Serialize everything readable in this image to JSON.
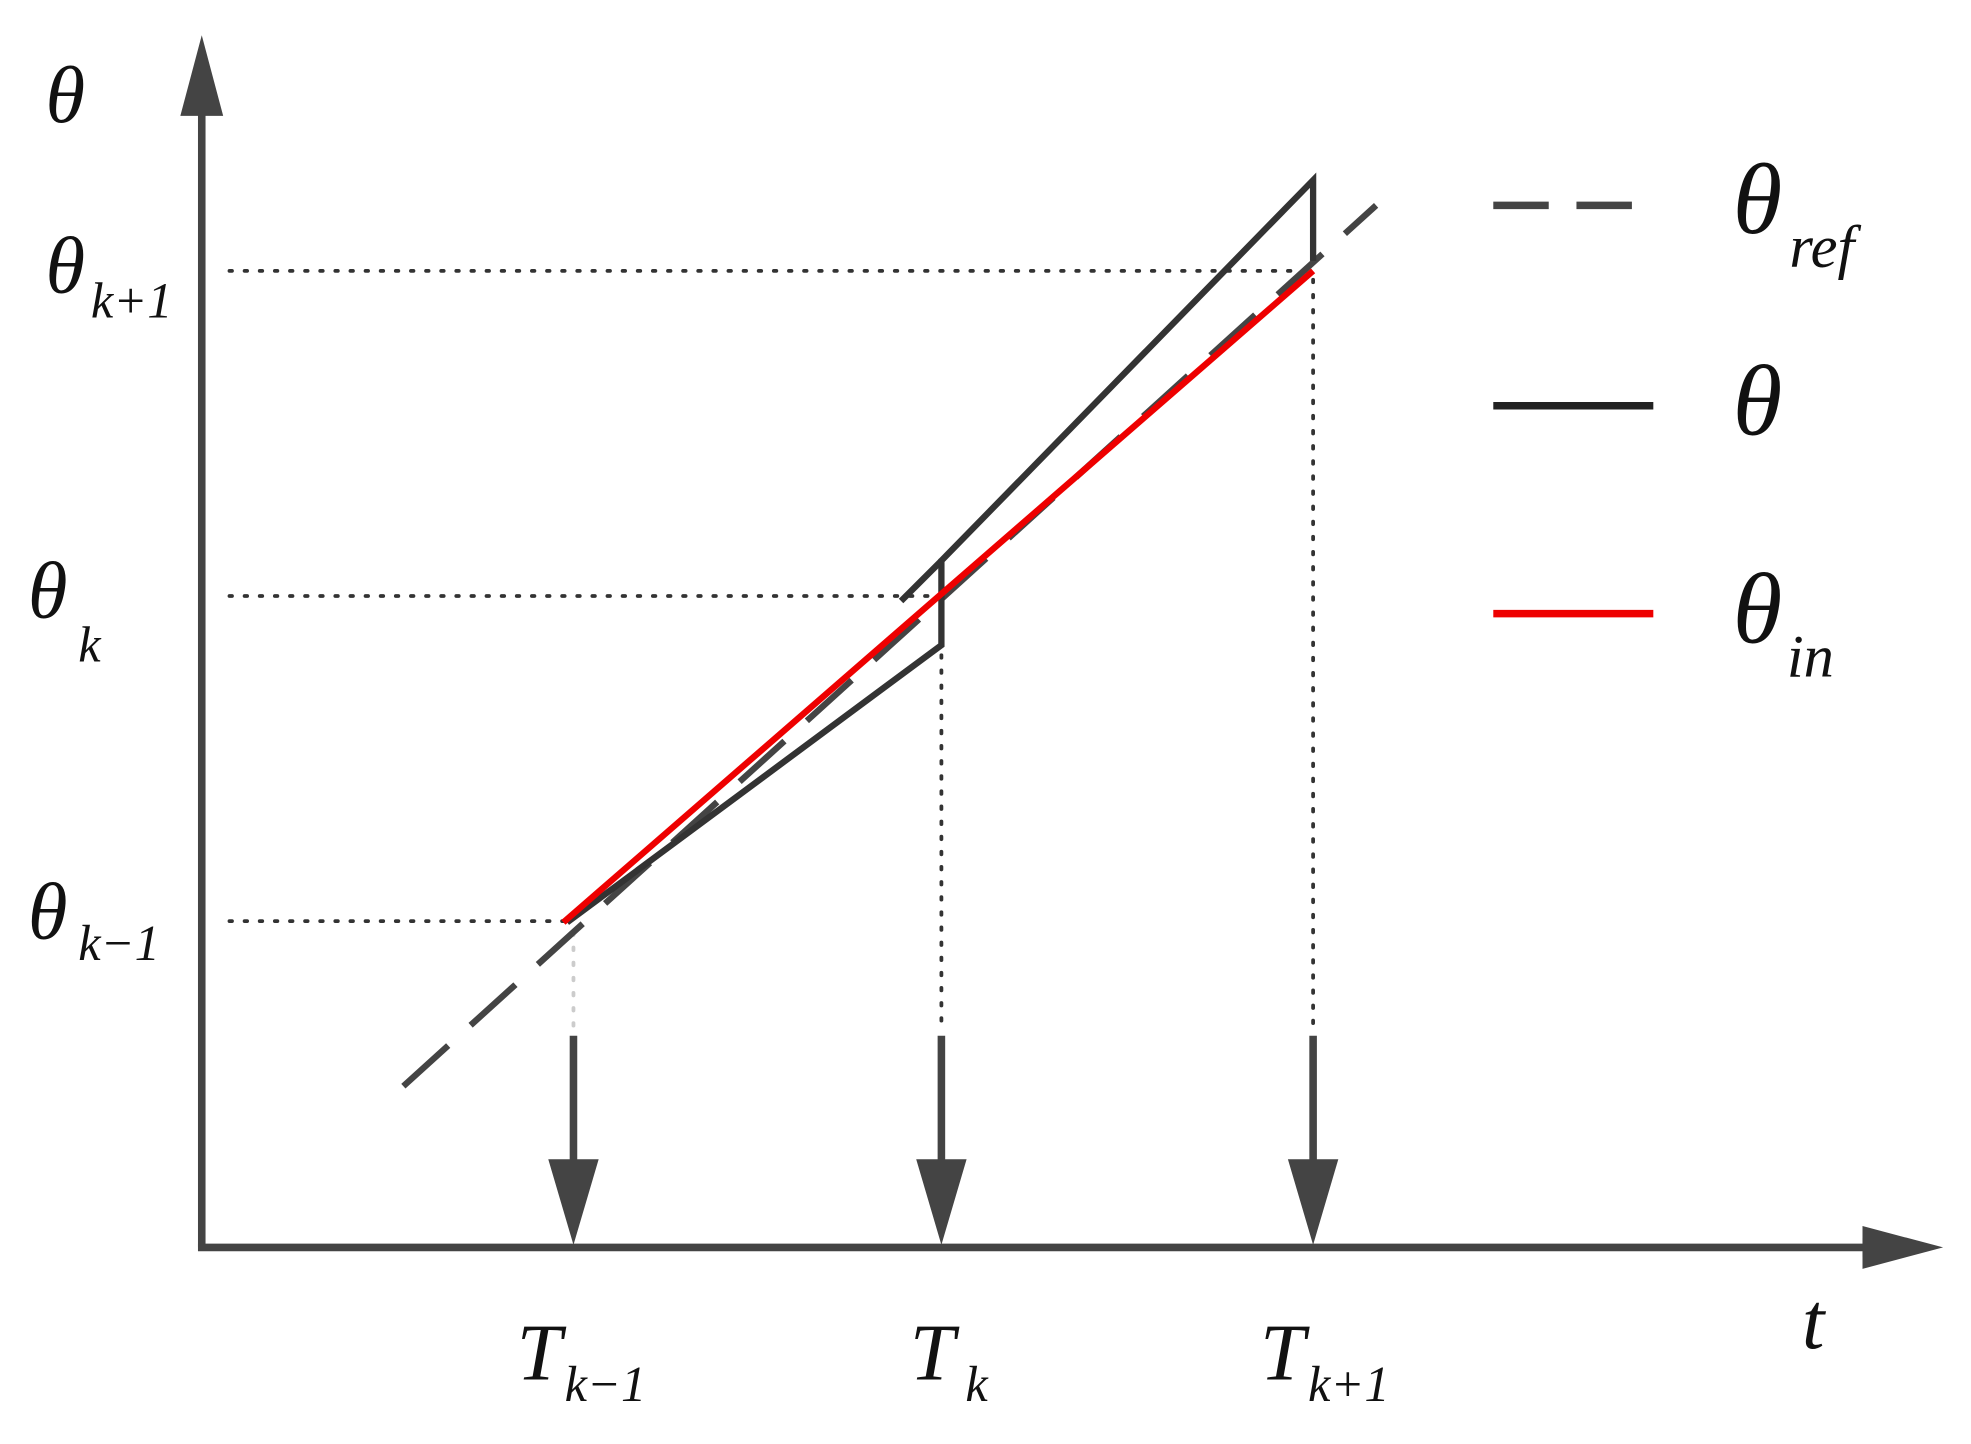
{
  "axes": {
    "y_label": "θ",
    "x_label": "t"
  },
  "y_labels": [
    {
      "symbol": "θ",
      "subscript": "k+1"
    },
    {
      "symbol": "θ",
      "subscript": "k"
    },
    {
      "symbol": "θ",
      "subscript": "k−1"
    }
  ],
  "x_labels": [
    {
      "symbol": "T",
      "subscript": "k−1"
    },
    {
      "symbol": "T",
      "subscript": "k"
    },
    {
      "symbol": "T",
      "subscript": "k+1"
    }
  ],
  "legend": [
    {
      "symbol": "θ",
      "subscript": "ref"
    },
    {
      "symbol": "θ",
      "subscript": ""
    },
    {
      "symbol": "θ",
      "subscript": "in"
    }
  ]
}
